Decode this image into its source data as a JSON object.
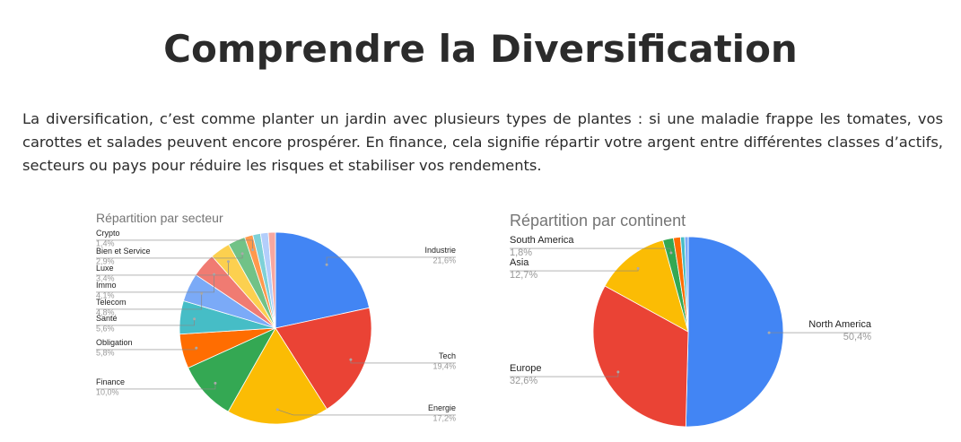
{
  "header": {
    "title": "Comprendre la Diversification"
  },
  "paragraph": "La diversification, c’est comme planter un jardin avec plusieurs types de plantes : si une maladie frappe les tomates, vos carottes et salades peuvent encore prospérer. En finance, cela signifie répartir votre argent entre différentes classes d’actifs, secteurs ou pays pour réduire les risques et stabiliser vos rendements.",
  "chart_data": [
    {
      "type": "pie",
      "title": "Répartition par secteur",
      "categories": [
        "Industrie",
        "Tech",
        "Energie",
        "Finance",
        "Obligation",
        "Santé",
        "Telecom",
        "Immo",
        "Luxe",
        "Bien et Service",
        "Crypto",
        null,
        null,
        null
      ],
      "values": [
        21.6,
        19.4,
        17.2,
        10.0,
        5.8,
        5.6,
        4.8,
        4.1,
        3.4,
        2.9,
        1.4,
        1.3,
        1.3,
        1.2
      ],
      "value_labels": [
        "21,6%",
        "19,4%",
        "17,2%",
        "10,0%",
        "5,8%",
        "5,6%",
        "4,8%",
        "4,1%",
        "3,4%",
        "2,9%",
        "1,4%",
        null,
        null,
        null
      ],
      "colors": [
        "#4285f4",
        "#ea4335",
        "#fbbc04",
        "#34a853",
        "#ff6d01",
        "#46bdc6",
        "#7baaf7",
        "#f07b72",
        "#fcd04f",
        "#71c287",
        "#ff994d",
        "#7ed1d7",
        "#b3cefb",
        "#f7a7a0"
      ]
    },
    {
      "type": "pie",
      "title": "Répartition par continent",
      "categories": [
        "North America",
        "Europe",
        "Asia",
        "South America",
        null,
        null,
        null
      ],
      "values": [
        50.4,
        32.6,
        12.7,
        1.8,
        1.2,
        0.7,
        0.6
      ],
      "value_labels": [
        "50,4%",
        "32,6%",
        "12,7%",
        "1,8%",
        null,
        null,
        null
      ],
      "colors": [
        "#4285f4",
        "#ea4335",
        "#fbbc04",
        "#34a853",
        "#ff6d01",
        "#46bdc6",
        "#7baaf7"
      ]
    }
  ]
}
